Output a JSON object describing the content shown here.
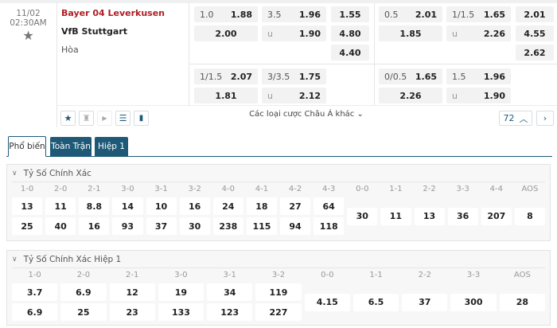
{
  "match": {
    "date": "11/02",
    "time": "02:30AM",
    "home": "Bayer 04 Leverkusen",
    "away": "VfB Stuttgart",
    "draw": "Hòa"
  },
  "full_time": {
    "handicap": {
      "line": "1.0",
      "home": "1.88",
      "away": "2.00"
    },
    "over_under": {
      "line": "3.5",
      "over": "1.96",
      "under_label": "u",
      "under": "1.90"
    },
    "one_x_two": [
      "1.55",
      "4.80",
      "4.40"
    ],
    "handicap2": {
      "line": "1/1.5",
      "home": "2.07",
      "away": "1.81"
    },
    "over_under2": {
      "line": "3/3.5",
      "over": "1.75",
      "under_label": "u",
      "under": "2.12"
    }
  },
  "first_half": {
    "handicap": {
      "line": "0.5",
      "home": "2.01",
      "away": "1.85"
    },
    "over_under": {
      "line": "1/1.5",
      "over": "1.65",
      "under_label": "u",
      "under": "2.26"
    },
    "one_x_two": [
      "2.01",
      "4.55",
      "2.62"
    ],
    "handicap2": {
      "line": "0/0.5",
      "home": "1.65",
      "away": "2.26"
    },
    "over_under2": {
      "line": "1.5",
      "over": "1.96",
      "under_label": "u",
      "under": "1.90"
    }
  },
  "footer": {
    "more_bets": "Các loại cược Châu Á khác",
    "count": "72",
    "icons": [
      "star-icon",
      "jersey-icon",
      "play-icon",
      "layers-icon",
      "stats-icon"
    ]
  },
  "tabs": [
    {
      "label": "Phổ biến",
      "active": true
    },
    {
      "label": "Toàn Trận"
    },
    {
      "label": "Hiệp 1"
    }
  ],
  "correct_score": {
    "title": "Tỷ Số Chính Xác",
    "two_row": [
      {
        "l": "1-0",
        "a": "13",
        "b": "25"
      },
      {
        "l": "2-0",
        "a": "11",
        "b": "40"
      },
      {
        "l": "2-1",
        "a": "8.8",
        "b": "16"
      },
      {
        "l": "3-0",
        "a": "14",
        "b": "93"
      },
      {
        "l": "3-1",
        "a": "10",
        "b": "37"
      },
      {
        "l": "3-2",
        "a": "16",
        "b": "30"
      },
      {
        "l": "4-0",
        "a": "24",
        "b": "238"
      },
      {
        "l": "4-1",
        "a": "18",
        "b": "115"
      },
      {
        "l": "4-2",
        "a": "27",
        "b": "94"
      },
      {
        "l": "4-3",
        "a": "64",
        "b": "118"
      }
    ],
    "single": [
      {
        "l": "0-0",
        "v": "30"
      },
      {
        "l": "1-1",
        "v": "11"
      },
      {
        "l": "2-2",
        "v": "13"
      },
      {
        "l": "3-3",
        "v": "36"
      },
      {
        "l": "4-4",
        "v": "207"
      },
      {
        "l": "AOS",
        "v": "8"
      }
    ]
  },
  "correct_score_h1": {
    "title": "Tỷ Số Chính Xác Hiệp 1",
    "two_row": [
      {
        "l": "1-0",
        "a": "3.7",
        "b": "6.9"
      },
      {
        "l": "2-0",
        "a": "6.9",
        "b": "25"
      },
      {
        "l": "2-1",
        "a": "12",
        "b": "23"
      },
      {
        "l": "3-0",
        "a": "19",
        "b": "133"
      },
      {
        "l": "3-1",
        "a": "34",
        "b": "123"
      },
      {
        "l": "3-2",
        "a": "119",
        "b": "227"
      }
    ],
    "single": [
      {
        "l": "0-0",
        "v": "4.15"
      },
      {
        "l": "1-1",
        "v": "6.5"
      },
      {
        "l": "2-2",
        "v": "37"
      },
      {
        "l": "3-3",
        "v": "300"
      },
      {
        "l": "AOS",
        "v": "28"
      }
    ]
  },
  "colors": {
    "accent": "#1e5a78",
    "home_team": "#b01e23"
  }
}
